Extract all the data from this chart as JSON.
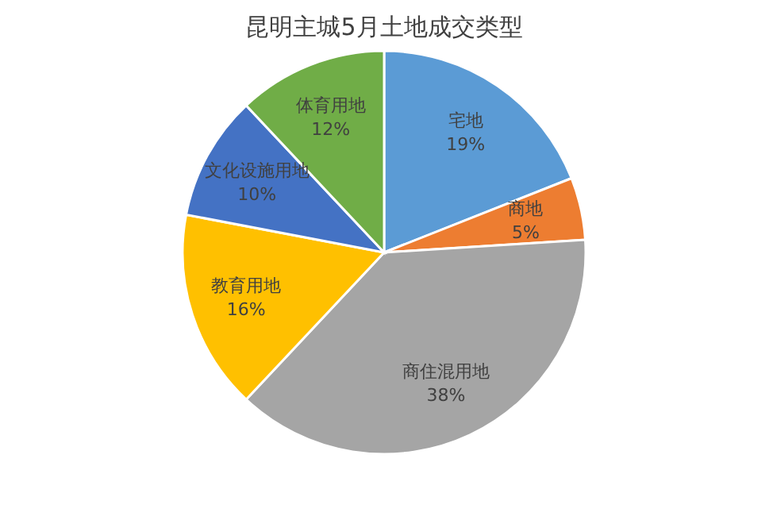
{
  "chart_data": {
    "type": "pie",
    "title": "昆明主城5月土地成交类型",
    "categories": [
      "宅地",
      "商地",
      "商住混用地",
      "教育用地",
      "文化设施用地",
      "体育用地"
    ],
    "values": [
      19,
      5,
      38,
      16,
      10,
      12
    ],
    "colors": [
      "#5b9bd5",
      "#ed7d31",
      "#a5a5a5",
      "#ffc000",
      "#4472c4",
      "#70ad47"
    ],
    "value_labels": [
      "19%",
      "5%",
      "38%",
      "16%",
      "10%",
      "12%"
    ],
    "legend": false
  }
}
